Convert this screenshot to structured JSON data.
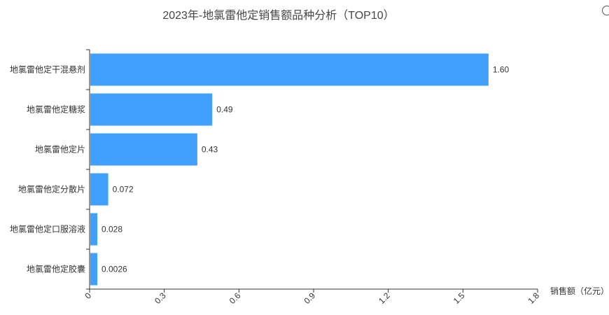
{
  "title": "2023年-地氯雷他定销售额品种分析（TOP10）",
  "icons": {
    "corner": "refresh-icon"
  },
  "chart_data": {
    "type": "bar",
    "orientation": "horizontal",
    "categories": [
      "地氯雷他定干混悬剂",
      "地氯雷他定糖浆",
      "地氯雷他定片",
      "地氯雷他定分散片",
      "地氯雷他定口服溶液",
      "地氯雷他定胶囊"
    ],
    "values": [
      1.6,
      0.49,
      0.43,
      0.072,
      0.028,
      0.0026
    ],
    "value_labels": [
      "1.60",
      "0.49",
      "0.43",
      "0.072",
      "0.028",
      "0.0026"
    ],
    "xlabel": "销售额（亿元）",
    "xlim": [
      0,
      1.8
    ],
    "xticks": [
      "0",
      "0.3",
      "0.6",
      "0.9",
      "1.2",
      "1.5",
      "1.8"
    ],
    "grid": false,
    "bar_color": "#3fa1fd"
  }
}
